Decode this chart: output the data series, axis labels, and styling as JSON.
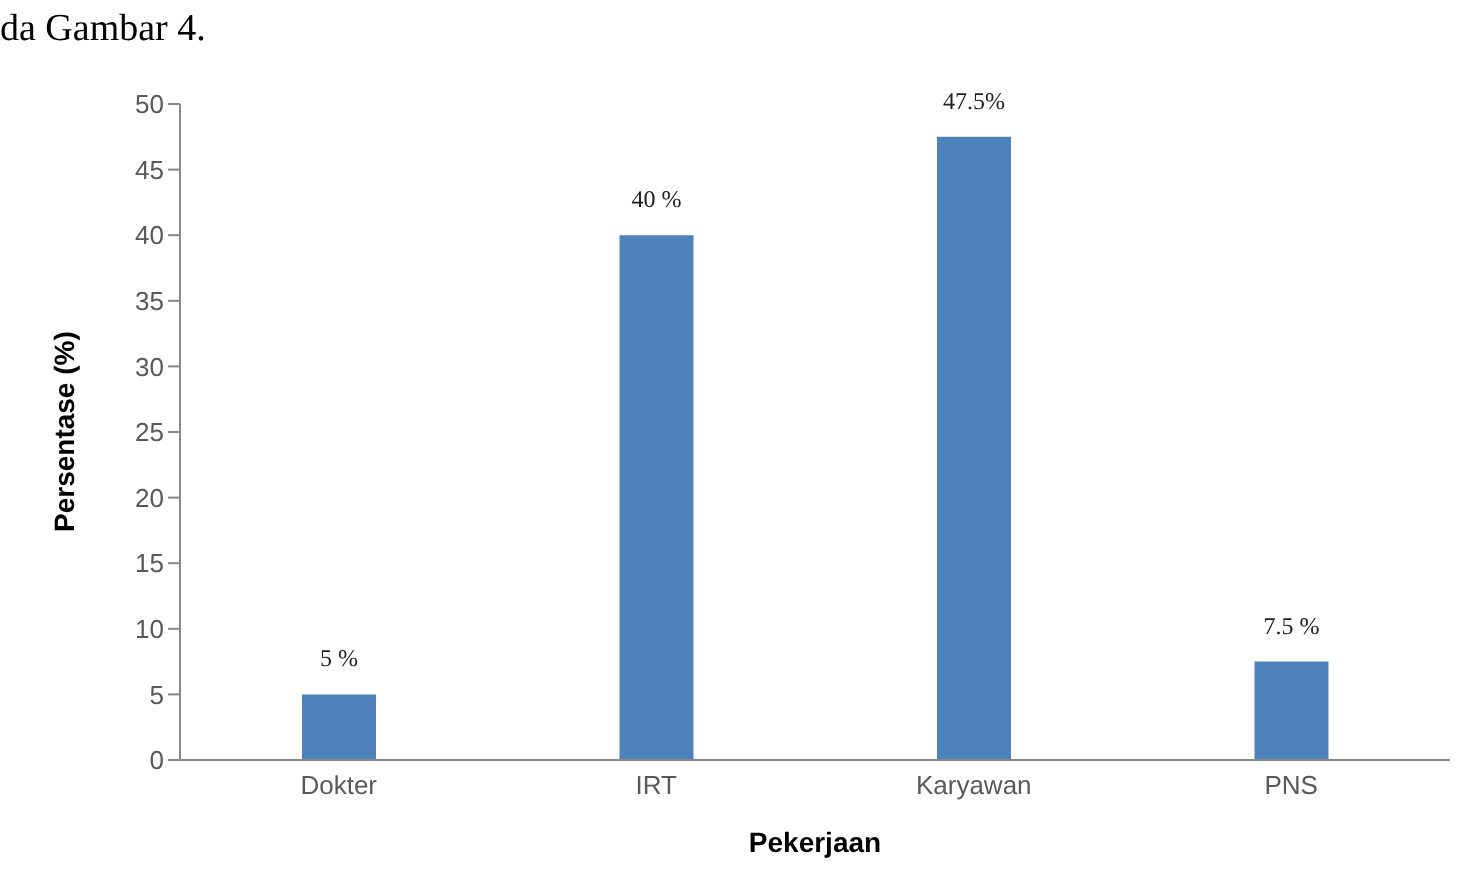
{
  "chart_data": {
    "type": "bar",
    "annotations": [
      "da Gambar 4."
    ],
    "xlabel": "Pekerjaan",
    "ylabel": "Persentase (%)",
    "categories": [
      "Dokter",
      "IRT",
      "Karyawan",
      "PNS"
    ],
    "values": [
      5,
      40,
      47.5,
      7.5
    ],
    "value_labels": [
      "5 %",
      "40 %",
      "47.5%",
      "7.5 %"
    ],
    "color": "#4f81bd",
    "ylim": [
      0,
      50
    ],
    "yticks": [
      0,
      5,
      10,
      15,
      20,
      25,
      30,
      35,
      40,
      45,
      50
    ],
    "grid": false,
    "legend": false
  }
}
